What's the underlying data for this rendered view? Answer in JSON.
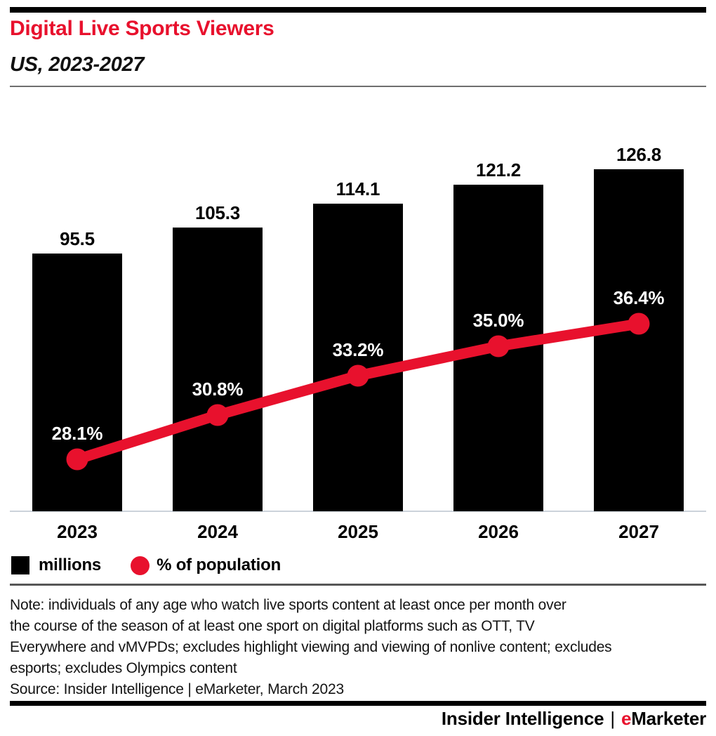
{
  "header": {
    "title": "Digital Live Sports Viewers",
    "subtitle": "US, 2023-2027"
  },
  "chart_data": {
    "type": "bar",
    "title": "Digital Live Sports Viewers",
    "subtitle": "US, 2023-2027",
    "categories": [
      "2023",
      "2024",
      "2025",
      "2026",
      "2027"
    ],
    "series": [
      {
        "name": "millions",
        "kind": "bar",
        "values": [
          95.5,
          105.3,
          114.1,
          121.2,
          126.8
        ],
        "color": "#000000",
        "label_color": "#000000"
      },
      {
        "name": "% of population",
        "kind": "line",
        "values": [
          28.1,
          30.8,
          33.2,
          35.0,
          36.4
        ],
        "color": "#e8112d",
        "label_color": "#ffffff"
      }
    ],
    "legend_position": "bottom-left",
    "grid": false,
    "data_labels": true
  },
  "legend": {
    "items": [
      {
        "label": "millions",
        "swatch": "black-square"
      },
      {
        "label": "% of population",
        "swatch": "red-circle"
      }
    ]
  },
  "note": {
    "lines": [
      "Note: individuals of any age who watch live sports content at least once per month over",
      "the course of the season of at least one sport on digital platforms such as OTT, TV",
      "Everywhere and vMVPDs; excludes highlight viewing and viewing of nonlive content; excludes",
      "esports; excludes Olympics content"
    ],
    "source": "Source: Insider Intelligence | eMarketer, March 2023"
  },
  "footer": {
    "left": "Insider Intelligence",
    "separator": "|",
    "emphasis": "e",
    "rest": "Marketer"
  },
  "colors": {
    "accent_red": "#e8112d",
    "bar_black": "#000000",
    "rule_gray": "#6e6e6e",
    "axis_gray": "#ccd3da"
  }
}
